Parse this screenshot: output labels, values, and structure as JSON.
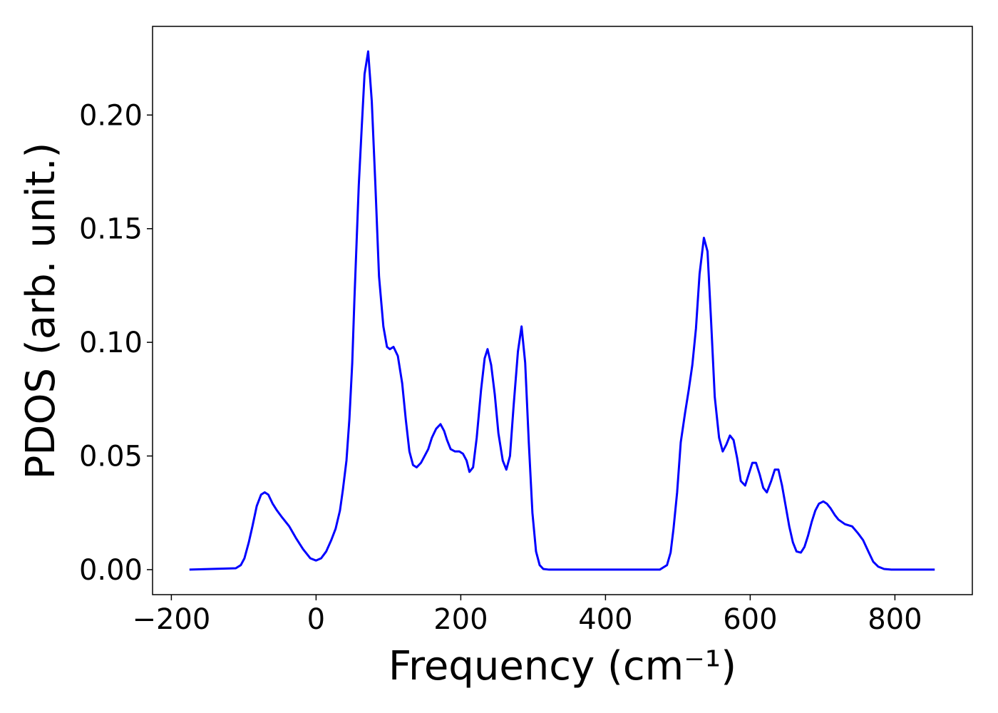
{
  "chart_data": {
    "type": "line",
    "xlabel": "Frequency (cm⁻¹)",
    "ylabel": "PDOS (arb. unit.)",
    "xlim": [
      -226,
      907
    ],
    "ylim": [
      -0.011,
      0.239
    ],
    "xticks": [
      {
        "value": -200,
        "label": "−200"
      },
      0,
      200,
      400,
      600,
      800
    ],
    "yticks": [
      {
        "value": 0,
        "label": "0.00"
      },
      {
        "value": 0.05,
        "label": "0.05"
      },
      {
        "value": 0.1,
        "label": "0.10"
      },
      {
        "value": 0.15,
        "label": "0.15"
      },
      {
        "value": 0.2,
        "label": "0.20"
      }
    ],
    "grid": false,
    "x": [
      -175,
      -111,
      -104,
      -99,
      -93,
      -88,
      -82,
      -76,
      -71,
      -66,
      -60,
      -54,
      -47,
      -37,
      -28,
      -18,
      -8,
      0,
      7,
      14,
      21,
      27,
      33,
      37,
      42,
      46,
      50,
      53,
      56,
      59,
      63,
      67,
      72,
      77,
      82,
      87,
      93,
      98,
      102,
      107,
      113,
      119,
      124,
      129,
      134,
      139,
      145,
      150,
      155,
      160,
      166,
      172,
      177,
      181,
      186,
      192,
      198,
      203,
      208,
      212,
      217,
      222,
      228,
      233,
      237,
      242,
      247,
      252,
      258,
      263,
      268,
      273,
      279,
      284,
      289,
      294,
      299,
      304,
      309,
      314,
      322,
      475,
      480,
      485,
      490,
      494,
      499,
      504,
      510,
      515,
      520,
      525,
      530,
      536,
      541,
      546,
      551,
      557,
      562,
      567,
      572,
      577,
      582,
      587,
      593,
      598,
      603,
      608,
      613,
      618,
      623,
      629,
      634,
      639,
      644,
      649,
      654,
      659,
      664,
      670,
      675,
      680,
      685,
      690,
      695,
      701,
      706,
      711,
      717,
      722,
      731,
      741,
      749,
      756,
      764,
      770,
      777,
      785,
      795,
      855
    ],
    "series": [
      {
        "color": "#0000ff",
        "values": [
          0,
          0.0006,
          0.002,
          0.005,
          0.012,
          0.019,
          0.028,
          0.033,
          0.034,
          0.033,
          0.029,
          0.026,
          0.023,
          0.019,
          0.014,
          0.009,
          0.005,
          0.004,
          0.005,
          0.008,
          0.013,
          0.018,
          0.026,
          0.035,
          0.048,
          0.066,
          0.091,
          0.119,
          0.144,
          0.169,
          0.194,
          0.218,
          0.228,
          0.206,
          0.169,
          0.129,
          0.107,
          0.098,
          0.097,
          0.098,
          0.094,
          0.082,
          0.066,
          0.052,
          0.046,
          0.045,
          0.047,
          0.05,
          0.053,
          0.058,
          0.062,
          0.064,
          0.061,
          0.057,
          0.053,
          0.052,
          0.052,
          0.051,
          0.048,
          0.043,
          0.045,
          0.058,
          0.079,
          0.093,
          0.097,
          0.09,
          0.077,
          0.06,
          0.048,
          0.044,
          0.05,
          0.072,
          0.096,
          0.107,
          0.091,
          0.056,
          0.025,
          0.008,
          0.002,
          0.0003,
          0,
          0,
          0.001,
          0.002,
          0.0075,
          0.018,
          0.034,
          0.056,
          0.069,
          0.079,
          0.09,
          0.106,
          0.13,
          0.146,
          0.14,
          0.109,
          0.076,
          0.058,
          0.052,
          0.055,
          0.059,
          0.057,
          0.049,
          0.039,
          0.037,
          0.042,
          0.047,
          0.047,
          0.042,
          0.036,
          0.034,
          0.039,
          0.044,
          0.044,
          0.037,
          0.028,
          0.019,
          0.012,
          0.008,
          0.0075,
          0.01,
          0.015,
          0.021,
          0.026,
          0.029,
          0.03,
          0.029,
          0.027,
          0.024,
          0.022,
          0.02,
          0.019,
          0.016,
          0.013,
          0.0075,
          0.0035,
          0.0013,
          0.0003,
          0,
          0
        ]
      }
    ]
  }
}
